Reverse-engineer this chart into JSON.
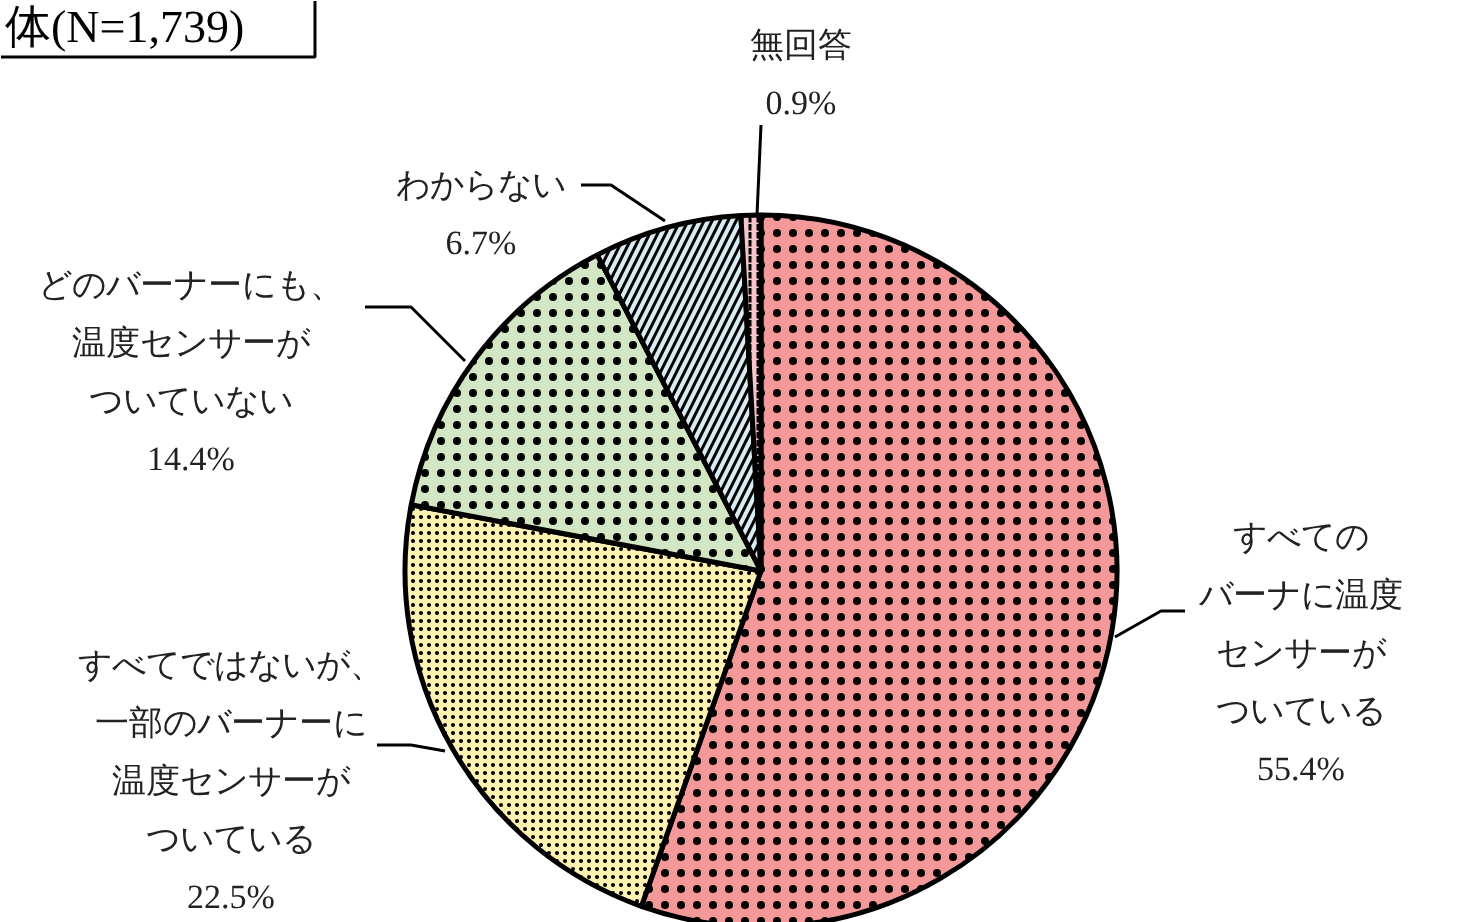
{
  "chart_data": {
    "type": "pie",
    "title": "体(N=1,739)",
    "categories": [
      "すべてのバーナに温度センサーがついている",
      "すべてではないが、一部のバーナーに温度センサーがついている",
      "どのバーナーにも、温度センサーがついていない",
      "わからない",
      "無回答"
    ],
    "values": [
      55.4,
      22.5,
      14.4,
      6.7,
      0.9
    ],
    "colors": [
      "#f4999a",
      "#fff2b3",
      "#d3e6c4",
      "#dbebf4",
      "#f6c6cc"
    ],
    "value_labels": [
      "55.4%",
      "22.5%",
      "14.4%",
      "6.7%",
      "0.9%"
    ]
  }
}
